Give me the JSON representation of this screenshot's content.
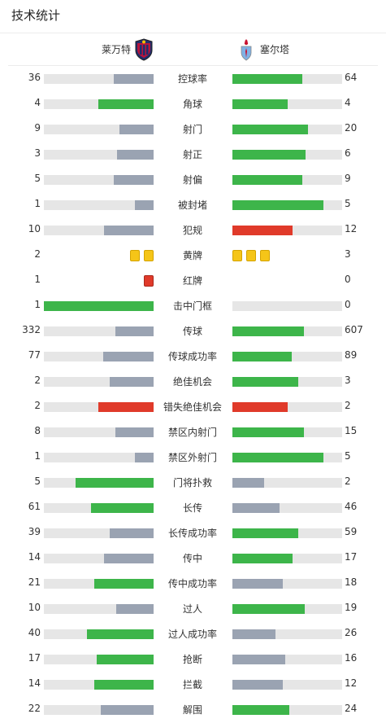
{
  "section_title": "技术统计",
  "teams": {
    "home": {
      "name": "莱万特",
      "logo_icon": "levante-crest-icon"
    },
    "away": {
      "name": "塞尔塔",
      "logo_icon": "celta-crest-icon"
    }
  },
  "colors": {
    "leading": "#3db54a",
    "trailing": "#9aa3b2",
    "negative": "#e03a2a",
    "track": "#e6e6e6",
    "yellow_card": "#f5c518",
    "red_card": "#e03a2a"
  },
  "stats": [
    {
      "label": "控球率",
      "home": "36",
      "away": "64",
      "home_share": 0.36,
      "away_share": 0.64,
      "home_color": "trailing",
      "away_color": "leading"
    },
    {
      "label": "角球",
      "home": "4",
      "away": "4",
      "home_share": 0.5,
      "away_share": 0.5,
      "home_color": "leading",
      "away_color": "leading"
    },
    {
      "label": "射门",
      "home": "9",
      "away": "20",
      "home_share": 0.31,
      "away_share": 0.69,
      "home_color": "trailing",
      "away_color": "leading"
    },
    {
      "label": "射正",
      "home": "3",
      "away": "6",
      "home_share": 0.33,
      "away_share": 0.67,
      "home_color": "trailing",
      "away_color": "leading"
    },
    {
      "label": "射偏",
      "home": "5",
      "away": "9",
      "home_share": 0.36,
      "away_share": 0.64,
      "home_color": "trailing",
      "away_color": "leading"
    },
    {
      "label": "被封堵",
      "home": "1",
      "away": "5",
      "home_share": 0.17,
      "away_share": 0.83,
      "home_color": "trailing",
      "away_color": "leading"
    },
    {
      "label": "犯规",
      "home": "10",
      "away": "12",
      "home_share": 0.45,
      "away_share": 0.55,
      "home_color": "trailing",
      "away_color": "negative"
    },
    {
      "label": "黄牌",
      "home": "2",
      "away": "3",
      "home_cards": 2,
      "away_cards": 3,
      "card_type": "yellow"
    },
    {
      "label": "红牌",
      "home": "1",
      "away": "0",
      "home_cards": 1,
      "away_cards": 0,
      "card_type": "red"
    },
    {
      "label": "击中门框",
      "home": "1",
      "away": "0",
      "home_share": 1.0,
      "away_share": 0.0,
      "home_color": "leading",
      "away_color": "trailing"
    },
    {
      "label": "传球",
      "home": "332",
      "away": "607",
      "home_share": 0.35,
      "away_share": 0.65,
      "home_color": "trailing",
      "away_color": "leading"
    },
    {
      "label": "传球成功率",
      "home": "77",
      "away": "89",
      "home_share": 0.46,
      "away_share": 0.54,
      "home_color": "trailing",
      "away_color": "leading"
    },
    {
      "label": "绝佳机会",
      "home": "2",
      "away": "3",
      "home_share": 0.4,
      "away_share": 0.6,
      "home_color": "trailing",
      "away_color": "leading"
    },
    {
      "label": "错失绝佳机会",
      "home": "2",
      "away": "2",
      "home_share": 0.5,
      "away_share": 0.5,
      "home_color": "negative",
      "away_color": "negative"
    },
    {
      "label": "禁区内射门",
      "home": "8",
      "away": "15",
      "home_share": 0.35,
      "away_share": 0.65,
      "home_color": "trailing",
      "away_color": "leading"
    },
    {
      "label": "禁区外射门",
      "home": "1",
      "away": "5",
      "home_share": 0.17,
      "away_share": 0.83,
      "home_color": "trailing",
      "away_color": "leading"
    },
    {
      "label": "门将扑救",
      "home": "5",
      "away": "2",
      "home_share": 0.71,
      "away_share": 0.29,
      "home_color": "leading",
      "away_color": "trailing"
    },
    {
      "label": "长传",
      "home": "61",
      "away": "46",
      "home_share": 0.57,
      "away_share": 0.43,
      "home_color": "leading",
      "away_color": "trailing"
    },
    {
      "label": "长传成功率",
      "home": "39",
      "away": "59",
      "home_share": 0.4,
      "away_share": 0.6,
      "home_color": "trailing",
      "away_color": "leading"
    },
    {
      "label": "传中",
      "home": "14",
      "away": "17",
      "home_share": 0.45,
      "away_share": 0.55,
      "home_color": "trailing",
      "away_color": "leading"
    },
    {
      "label": "传中成功率",
      "home": "21",
      "away": "18",
      "home_share": 0.54,
      "away_share": 0.46,
      "home_color": "leading",
      "away_color": "trailing"
    },
    {
      "label": "过人",
      "home": "10",
      "away": "19",
      "home_share": 0.34,
      "away_share": 0.66,
      "home_color": "trailing",
      "away_color": "leading"
    },
    {
      "label": "过人成功率",
      "home": "40",
      "away": "26",
      "home_share": 0.61,
      "away_share": 0.39,
      "home_color": "leading",
      "away_color": "trailing"
    },
    {
      "label": "抢断",
      "home": "17",
      "away": "16",
      "home_share": 0.52,
      "away_share": 0.48,
      "home_color": "leading",
      "away_color": "trailing"
    },
    {
      "label": "拦截",
      "home": "14",
      "away": "12",
      "home_share": 0.54,
      "away_share": 0.46,
      "home_color": "leading",
      "away_color": "trailing"
    },
    {
      "label": "解围",
      "home": "22",
      "away": "24",
      "home_share": 0.48,
      "away_share": 0.52,
      "home_color": "trailing",
      "away_color": "leading"
    }
  ]
}
